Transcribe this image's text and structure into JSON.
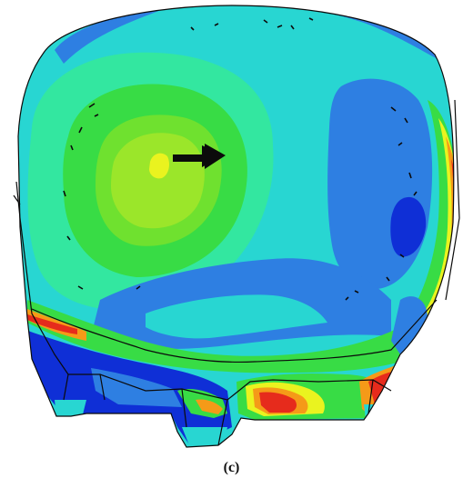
{
  "panel_label": "(c)",
  "colors": {
    "dark_blue": "#0f2fd6",
    "blue": "#2e7fe2",
    "cyan": "#28d6d2",
    "green_cyan": "#33e7a0",
    "green": "#38dc45",
    "yellow_green": "#9be62a",
    "yellow": "#eaf31f",
    "orange": "#f59a18",
    "red": "#e62b1c",
    "outline": "#0b0b0b"
  }
}
